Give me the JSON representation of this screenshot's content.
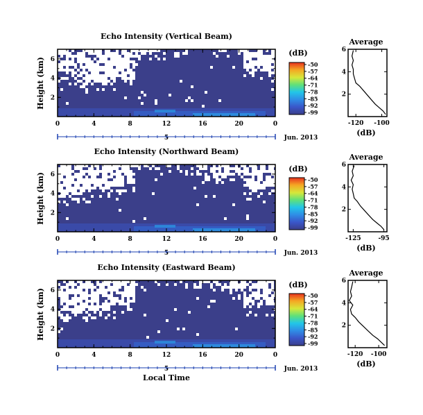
{
  "chart_data": [
    {
      "type": "heatmap",
      "title": "Echo Intensity (Vertical Beam)",
      "ylabel": "Height (km)",
      "xlabel": "",
      "x_ticks": [
        "0",
        "4",
        "8",
        "12",
        "16",
        "20",
        "0"
      ],
      "y_ticks": [
        "2",
        "4",
        "6"
      ],
      "xlim": [
        0,
        24
      ],
      "ylim": [
        0,
        7
      ],
      "date_ruler": {
        "day": "5",
        "label": "Jun. 2013"
      },
      "colorbar": {
        "unit": "(dB)",
        "ticks": [
          "-50",
          "-57",
          "-64",
          "-71",
          "-78",
          "-85",
          "-92",
          "-99"
        ],
        "range": [
          -99,
          -50
        ]
      },
      "average_profile": {
        "title": "Average",
        "xlabel": "(dB)",
        "x_ticks": [
          "-120",
          "-100"
        ],
        "xlim": [
          -126,
          -96
        ],
        "y_ticks": [
          "2",
          "4",
          "6"
        ],
        "ylim": [
          0,
          6
        ],
        "x": [
          -97,
          -99,
          -102,
          -105,
          -108,
          -111,
          -114,
          -117,
          -120,
          -121,
          -122,
          -122,
          -123,
          -122,
          -123,
          -122
        ],
        "y": [
          0.2,
          0.5,
          0.8,
          1.1,
          1.5,
          1.9,
          2.3,
          2.7,
          3.0,
          3.4,
          3.8,
          4.2,
          4.6,
          5.0,
          5.4,
          5.9
        ]
      },
      "seed": 3
    },
    {
      "type": "heatmap",
      "title": "Echo Intensity (Northward Beam)",
      "ylabel": "Height (km)",
      "xlabel": "",
      "x_ticks": [
        "0",
        "4",
        "8",
        "12",
        "16",
        "20",
        "0"
      ],
      "y_ticks": [
        "2",
        "4",
        "6"
      ],
      "xlim": [
        0,
        24
      ],
      "ylim": [
        0,
        7
      ],
      "date_ruler": {
        "day": "5",
        "label": "Jun. 2013"
      },
      "colorbar": {
        "unit": "(dB)",
        "ticks": [
          "-50",
          "-57",
          "-64",
          "-71",
          "-78",
          "-85",
          "-92",
          "-99"
        ],
        "range": [
          -99,
          -50
        ]
      },
      "average_profile": {
        "title": "Average",
        "xlabel": "(dB)",
        "x_ticks": [
          "-125",
          "-95"
        ],
        "xlim": [
          -130,
          -92
        ],
        "y_ticks": [
          "2",
          "4",
          "6"
        ],
        "ylim": [
          0,
          6
        ],
        "x": [
          -95,
          -98,
          -102,
          -106,
          -110,
          -114,
          -118,
          -121,
          -124,
          -125,
          -126,
          -125,
          -127,
          -125,
          -126,
          -124
        ],
        "y": [
          0.2,
          0.5,
          0.8,
          1.1,
          1.5,
          1.9,
          2.3,
          2.7,
          3.0,
          3.4,
          3.8,
          4.2,
          4.6,
          5.0,
          5.4,
          5.9
        ]
      },
      "seed": 11
    },
    {
      "type": "heatmap",
      "title": "Echo Intensity (Eastward Beam)",
      "ylabel": "Height (km)",
      "xlabel": "Local Time",
      "x_ticks": [
        "0",
        "4",
        "8",
        "12",
        "16",
        "20",
        "0"
      ],
      "y_ticks": [
        "2",
        "4",
        "6"
      ],
      "xlim": [
        0,
        24
      ],
      "ylim": [
        0,
        7
      ],
      "date_ruler": {
        "day": "5",
        "label": "Jun. 2013"
      },
      "colorbar": {
        "unit": "(dB)",
        "ticks": [
          "-50",
          "-57",
          "-64",
          "-71",
          "-78",
          "-85",
          "-92",
          "-99"
        ],
        "range": [
          -99,
          -50
        ]
      },
      "average_profile": {
        "title": "Average",
        "xlabel": "(dB)",
        "x_ticks": [
          "-120",
          "-100"
        ],
        "xlim": [
          -126,
          -93
        ],
        "y_ticks": [
          "2",
          "4",
          "6"
        ],
        "ylim": [
          0,
          6
        ],
        "x": [
          -95,
          -98,
          -101,
          -105,
          -109,
          -113,
          -117,
          -120,
          -123,
          -124,
          -122,
          -125,
          -123,
          -124,
          -123,
          -122
        ],
        "y": [
          0.2,
          0.5,
          0.8,
          1.1,
          1.5,
          1.9,
          2.3,
          2.7,
          3.0,
          3.4,
          3.8,
          4.2,
          4.6,
          5.0,
          5.4,
          5.9
        ]
      },
      "seed": 23
    }
  ],
  "colors": {
    "background": "#3b3f8a",
    "no_data": "#ffffff",
    "axis": "#000000",
    "ruler": "#1a3fb0"
  }
}
